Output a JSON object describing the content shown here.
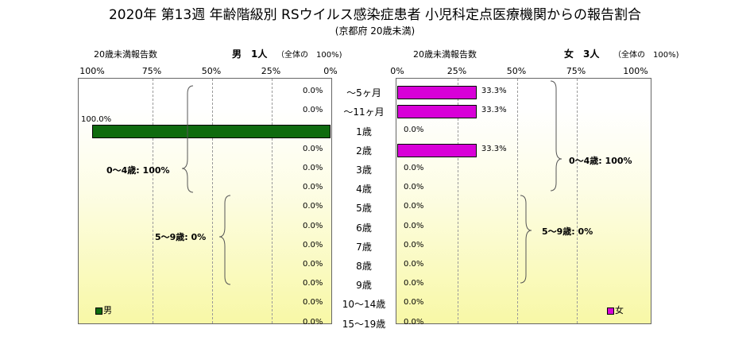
{
  "title": "2020年 第13週 年齢階級別 RSウイルス感染症患者 小児科定点医療機関からの報告割合",
  "subtitle": "(京都府 20歳未満)",
  "male_panel": {
    "under20_label": "20歳未満報告数",
    "sex_count_label": "男　1人",
    "share_label": "（全体の　100%)",
    "ticks": [
      "100%",
      "75%",
      "50%",
      "25%",
      "0%"
    ],
    "legend": "男",
    "color": "#0f6b0f",
    "groups": [
      {
        "label": "0〜4歳: 100%"
      },
      {
        "label": "5〜9歳: 0%"
      }
    ]
  },
  "female_panel": {
    "under20_label": "20歳未満報告数",
    "sex_count_label": "女　3人",
    "share_label": "（全体の　100%)",
    "ticks": [
      "0%",
      "25%",
      "50%",
      "75%",
      "100%"
    ],
    "legend": "女",
    "color": "#d800d8",
    "groups": [
      {
        "label": "0〜4歳: 100%"
      },
      {
        "label": "5〜9歳: 0%"
      }
    ]
  },
  "chart_data": {
    "type": "bar",
    "orientation": "horizontal",
    "layout": "population-pyramid",
    "xlim": [
      0,
      100
    ],
    "categories": [
      "〜5ヶ月",
      "〜11ヶ月",
      "1歳",
      "2歳",
      "3歳",
      "4歳",
      "5歳",
      "6歳",
      "7歳",
      "8歳",
      "9歳",
      "10〜14歳",
      "15〜19歳"
    ],
    "series": [
      {
        "name": "男",
        "values": [
          0,
          0,
          100,
          0,
          0,
          0,
          0,
          0,
          0,
          0,
          0,
          0,
          0
        ],
        "labels": [
          "0.0%",
          "0.0%",
          "100.0%",
          "0.0%",
          "0.0%",
          "0.0%",
          "0.0%",
          "0.0%",
          "0.0%",
          "0.0%",
          "0.0%",
          "0.0%",
          "0.0%"
        ]
      },
      {
        "name": "女",
        "values": [
          33.3,
          33.3,
          0,
          33.3,
          0,
          0,
          0,
          0,
          0,
          0,
          0,
          0,
          0
        ],
        "labels": [
          "33.3%",
          "33.3%",
          "0.0%",
          "33.3%",
          "0.0%",
          "0.0%",
          "0.0%",
          "0.0%",
          "0.0%",
          "0.0%",
          "0.0%",
          "0.0%",
          "0.0%"
        ]
      }
    ]
  }
}
